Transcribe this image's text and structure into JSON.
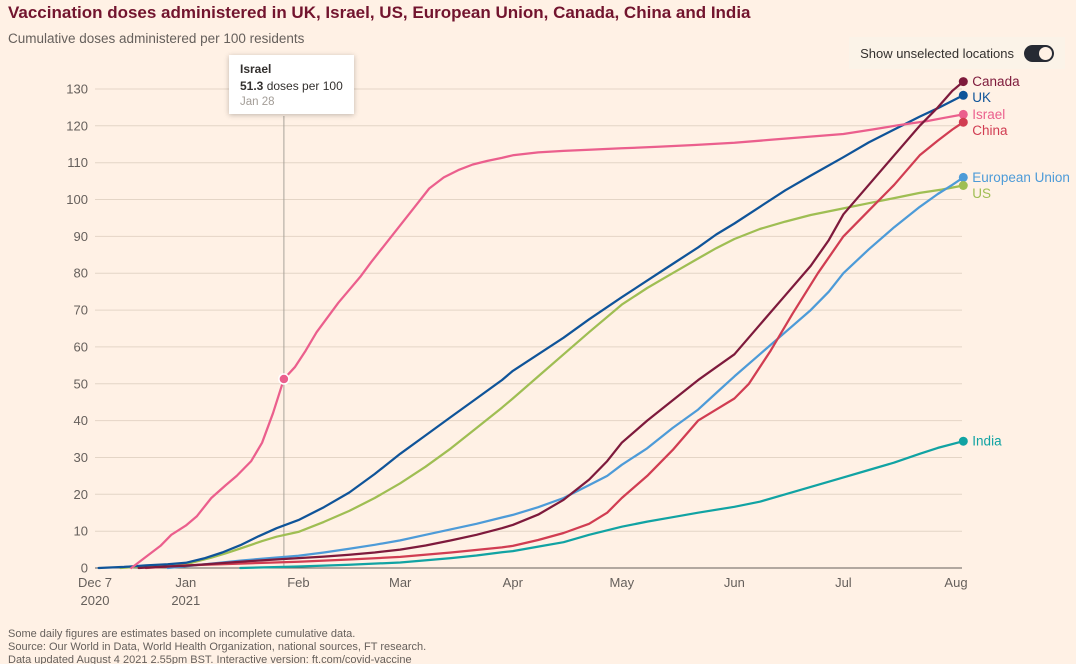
{
  "colors": {
    "background": "#fff1e5",
    "title": "#72142e",
    "text_muted": "#66605c"
  },
  "header": {
    "title": "Vaccination doses administered in UK, Israel, US, European Union, Canada, China and India",
    "subtitle": "Cumulative doses administered per 100 residents"
  },
  "controls": {
    "toggle_label": "Show unselected locations",
    "toggle_state": "on"
  },
  "tooltip": {
    "country": "Israel",
    "value": "51.3",
    "value_suffix": " doses per 100",
    "date": "Jan 28"
  },
  "footer": {
    "note": "Some daily figures are estimates based on incomplete cumulative data.",
    "source": "Source: Our World in Data, World Health Organization, national sources, FT research.",
    "updated": "Data updated August 4 2021 2.55pm BST. Interactive version: ft.com/covid-vaccine"
  },
  "chart_data": {
    "type": "line",
    "title": "Vaccination doses administered in UK, Israel, US, European Union, Canada, China and India",
    "subtitle": "Cumulative doses administered per 100 residents",
    "ylabel": "Cumulative doses administered per 100 residents",
    "ylim": [
      0,
      130
    ],
    "yticks": [
      0,
      10,
      20,
      30,
      40,
      50,
      60,
      70,
      80,
      90,
      100,
      110,
      120,
      130
    ],
    "x_unit": "days since Dec 7 2020",
    "xlim_days": [
      0,
      240
    ],
    "grid_color": "#e4d5c6",
    "axis_color": "#66605c",
    "tick_color": "#66605c",
    "legend_position": "right-end-labels",
    "x_ticks": [
      {
        "day": 0,
        "label": "Dec 7",
        "sublabel": "2020"
      },
      {
        "day": 25,
        "label": "Jan",
        "sublabel": "2021"
      },
      {
        "day": 56,
        "label": "Feb"
      },
      {
        "day": 84,
        "label": "Mar"
      },
      {
        "day": 115,
        "label": "Apr"
      },
      {
        "day": 145,
        "label": "May"
      },
      {
        "day": 176,
        "label": "Jun"
      },
      {
        "day": 206,
        "label": "Jul"
      },
      {
        "day": 237,
        "label": "Aug"
      }
    ],
    "annotation": {
      "series": "Israel",
      "day": 52,
      "value": 51.3,
      "date": "Jan 28",
      "text": "51.3 doses per 100"
    },
    "series": [
      {
        "name": "India",
        "color": "#11a3a3",
        "points": [
          [
            40,
            0
          ],
          [
            56,
            0.4
          ],
          [
            70,
            0.9
          ],
          [
            84,
            1.5
          ],
          [
            98,
            2.7
          ],
          [
            105,
            3.4
          ],
          [
            112,
            4.3
          ],
          [
            115,
            4.6
          ],
          [
            122,
            5.8
          ],
          [
            129,
            7
          ],
          [
            136,
            9
          ],
          [
            145,
            11.2
          ],
          [
            152,
            12.6
          ],
          [
            159,
            13.8
          ],
          [
            166,
            15
          ],
          [
            176,
            16.6
          ],
          [
            183,
            18
          ],
          [
            190,
            20
          ],
          [
            197,
            22
          ],
          [
            206,
            24.6
          ],
          [
            213,
            26.6
          ],
          [
            220,
            28.6
          ],
          [
            227,
            31
          ],
          [
            232,
            32.6
          ],
          [
            239,
            34.4
          ]
        ]
      },
      {
        "name": "US",
        "color": "#9fbe53",
        "points": [
          [
            7,
            0
          ],
          [
            14,
            0.5
          ],
          [
            20,
            0.8
          ],
          [
            25,
            1
          ],
          [
            28,
            1.8
          ],
          [
            32,
            2.8
          ],
          [
            36,
            4
          ],
          [
            40,
            5.3
          ],
          [
            46,
            7.3
          ],
          [
            50,
            8.5
          ],
          [
            56,
            9.8
          ],
          [
            63,
            12.5
          ],
          [
            70,
            15.5
          ],
          [
            77,
            19
          ],
          [
            84,
            23
          ],
          [
            91,
            27.5
          ],
          [
            98,
            32.5
          ],
          [
            105,
            38
          ],
          [
            112,
            43.5
          ],
          [
            115,
            46
          ],
          [
            122,
            52
          ],
          [
            129,
            58
          ],
          [
            136,
            64
          ],
          [
            145,
            71.5
          ],
          [
            152,
            76
          ],
          [
            159,
            80
          ],
          [
            166,
            84
          ],
          [
            171,
            86.8
          ],
          [
            176,
            89.3
          ],
          [
            183,
            92
          ],
          [
            190,
            94
          ],
          [
            197,
            95.8
          ],
          [
            206,
            97.6
          ],
          [
            213,
            99
          ],
          [
            220,
            100.4
          ],
          [
            227,
            101.8
          ],
          [
            233,
            102.7
          ],
          [
            239,
            103.8
          ]
        ]
      },
      {
        "name": "European Union",
        "color": "#4d9bd8",
        "points": [
          [
            20,
            0
          ],
          [
            25,
            0.5
          ],
          [
            32,
            1.2
          ],
          [
            40,
            2
          ],
          [
            48,
            2.7
          ],
          [
            56,
            3.3
          ],
          [
            63,
            4.2
          ],
          [
            70,
            5.2
          ],
          [
            77,
            6.3
          ],
          [
            84,
            7.5
          ],
          [
            91,
            9
          ],
          [
            98,
            10.5
          ],
          [
            105,
            12
          ],
          [
            112,
            13.7
          ],
          [
            115,
            14.4
          ],
          [
            122,
            16.5
          ],
          [
            129,
            19
          ],
          [
            136,
            22.5
          ],
          [
            141,
            25
          ],
          [
            145,
            28
          ],
          [
            152,
            32.5
          ],
          [
            159,
            38
          ],
          [
            166,
            43
          ],
          [
            171,
            47.5
          ],
          [
            176,
            52
          ],
          [
            183,
            58
          ],
          [
            190,
            64
          ],
          [
            197,
            70
          ],
          [
            202,
            75
          ],
          [
            206,
            80
          ],
          [
            213,
            86.5
          ],
          [
            220,
            92.5
          ],
          [
            227,
            98
          ],
          [
            232,
            101.5
          ],
          [
            236,
            104
          ],
          [
            239,
            106
          ]
        ]
      },
      {
        "name": "UK",
        "color": "#0f5499",
        "points": [
          [
            1,
            0
          ],
          [
            8,
            0.3
          ],
          [
            14,
            0.7
          ],
          [
            20,
            1
          ],
          [
            25,
            1.4
          ],
          [
            30,
            2.6
          ],
          [
            35,
            4.2
          ],
          [
            40,
            6.2
          ],
          [
            45,
            8.6
          ],
          [
            50,
            10.8
          ],
          [
            56,
            13
          ],
          [
            63,
            16.5
          ],
          [
            70,
            20.5
          ],
          [
            77,
            25.5
          ],
          [
            84,
            31
          ],
          [
            91,
            36
          ],
          [
            98,
            41
          ],
          [
            105,
            46
          ],
          [
            112,
            51
          ],
          [
            115,
            53.5
          ],
          [
            122,
            58
          ],
          [
            129,
            62.5
          ],
          [
            136,
            67.5
          ],
          [
            145,
            73.5
          ],
          [
            152,
            78
          ],
          [
            159,
            82.5
          ],
          [
            166,
            87
          ],
          [
            171,
            90.5
          ],
          [
            176,
            93.5
          ],
          [
            183,
            98
          ],
          [
            190,
            102.5
          ],
          [
            197,
            106.5
          ],
          [
            206,
            111.5
          ],
          [
            213,
            115.5
          ],
          [
            220,
            119
          ],
          [
            227,
            122.5
          ],
          [
            232,
            124.8
          ],
          [
            239,
            128.3
          ]
        ]
      },
      {
        "name": "Israel",
        "color": "#eb5f8d",
        "points": [
          [
            10,
            0
          ],
          [
            14,
            3
          ],
          [
            18,
            6
          ],
          [
            21,
            9
          ],
          [
            25,
            11.5
          ],
          [
            28,
            14
          ],
          [
            32,
            19
          ],
          [
            36,
            22.5
          ],
          [
            39,
            25
          ],
          [
            43,
            29
          ],
          [
            46,
            34
          ],
          [
            49,
            42
          ],
          [
            52,
            51.3
          ],
          [
            55,
            54.5
          ],
          [
            58,
            59
          ],
          [
            61,
            64
          ],
          [
            64,
            68
          ],
          [
            67,
            72
          ],
          [
            70,
            75.5
          ],
          [
            73,
            79
          ],
          [
            76,
            83
          ],
          [
            80,
            88
          ],
          [
            84,
            93
          ],
          [
            88,
            98
          ],
          [
            92,
            103
          ],
          [
            96,
            106
          ],
          [
            100,
            108
          ],
          [
            104,
            109.5
          ],
          [
            108,
            110.5
          ],
          [
            112,
            111.3
          ],
          [
            115,
            112
          ],
          [
            122,
            112.8
          ],
          [
            129,
            113.2
          ],
          [
            136,
            113.5
          ],
          [
            145,
            113.9
          ],
          [
            155,
            114.3
          ],
          [
            165,
            114.8
          ],
          [
            176,
            115.4
          ],
          [
            186,
            116.2
          ],
          [
            196,
            117
          ],
          [
            206,
            117.8
          ],
          [
            214,
            119
          ],
          [
            222,
            120.3
          ],
          [
            229,
            121.3
          ],
          [
            234,
            122.2
          ],
          [
            239,
            123.1
          ]
        ]
      },
      {
        "name": "China",
        "color": "#d13d52",
        "points": [
          [
            14,
            0
          ],
          [
            25,
            0.7
          ],
          [
            40,
            1.2
          ],
          [
            56,
            1.7
          ],
          [
            70,
            2.3
          ],
          [
            84,
            3
          ],
          [
            98,
            4.2
          ],
          [
            112,
            5.6
          ],
          [
            115,
            6
          ],
          [
            122,
            7.6
          ],
          [
            129,
            9.5
          ],
          [
            136,
            12
          ],
          [
            141,
            15
          ],
          [
            145,
            19
          ],
          [
            152,
            25
          ],
          [
            159,
            32
          ],
          [
            166,
            40
          ],
          [
            171,
            43
          ],
          [
            176,
            46
          ],
          [
            180,
            50
          ],
          [
            186,
            59
          ],
          [
            192,
            69
          ],
          [
            199,
            80
          ],
          [
            206,
            90
          ],
          [
            213,
            97
          ],
          [
            220,
            104
          ],
          [
            227,
            112
          ],
          [
            232,
            116
          ],
          [
            236,
            119
          ],
          [
            239,
            121
          ]
        ]
      },
      {
        "name": "Canada",
        "color": "#7e1a3c",
        "points": [
          [
            12,
            0
          ],
          [
            20,
            0.4
          ],
          [
            25,
            0.6
          ],
          [
            32,
            1.1
          ],
          [
            40,
            1.7
          ],
          [
            48,
            2.2
          ],
          [
            56,
            2.7
          ],
          [
            63,
            3.1
          ],
          [
            70,
            3.6
          ],
          [
            77,
            4.2
          ],
          [
            84,
            5
          ],
          [
            91,
            6.1
          ],
          [
            98,
            7.5
          ],
          [
            105,
            9
          ],
          [
            112,
            10.8
          ],
          [
            115,
            11.7
          ],
          [
            122,
            14.5
          ],
          [
            129,
            18.5
          ],
          [
            136,
            24
          ],
          [
            141,
            29
          ],
          [
            145,
            34
          ],
          [
            152,
            40
          ],
          [
            159,
            45.5
          ],
          [
            166,
            51
          ],
          [
            171,
            54.5
          ],
          [
            176,
            58
          ],
          [
            183,
            66
          ],
          [
            190,
            74
          ],
          [
            197,
            82
          ],
          [
            202,
            89
          ],
          [
            206,
            96
          ],
          [
            213,
            104
          ],
          [
            220,
            112
          ],
          [
            227,
            120
          ],
          [
            232,
            125
          ],
          [
            236,
            129.5
          ],
          [
            239,
            132
          ]
        ]
      }
    ]
  }
}
